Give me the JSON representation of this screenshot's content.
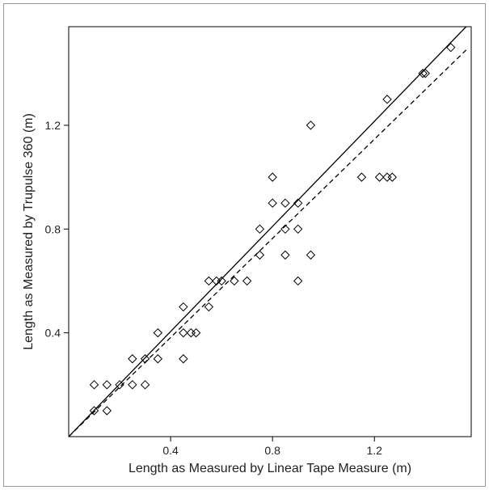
{
  "chart_data": {
    "type": "scatter",
    "title": "",
    "xlabel": "Length as Measured by Linear Tape Measure (m)",
    "ylabel": "Length as Measured by Trupulse 360 (m)",
    "xlim": [
      0.0,
      1.58
    ],
    "ylim": [
      0.0,
      1.58
    ],
    "xticks": [
      0.4,
      0.8,
      1.2
    ],
    "yticks": [
      0.4,
      0.8,
      1.2
    ],
    "xtick_labels": [
      "0.4",
      "0.8",
      "1.2"
    ],
    "ytick_labels": [
      "0.4",
      "0.8",
      "1.2"
    ],
    "grid": false,
    "legend": "none",
    "marker": "open-diamond",
    "series": [
      {
        "points": [
          [
            0.1,
            0.1
          ],
          [
            0.15,
            0.1
          ],
          [
            0.1,
            0.2
          ],
          [
            0.15,
            0.2
          ],
          [
            0.2,
            0.2
          ],
          [
            0.25,
            0.2
          ],
          [
            0.3,
            0.2
          ],
          [
            0.25,
            0.3
          ],
          [
            0.3,
            0.3
          ],
          [
            0.35,
            0.3
          ],
          [
            0.45,
            0.3
          ],
          [
            0.35,
            0.4
          ],
          [
            0.45,
            0.4
          ],
          [
            0.48,
            0.4
          ],
          [
            0.5,
            0.4
          ],
          [
            0.45,
            0.5
          ],
          [
            0.55,
            0.5
          ],
          [
            0.55,
            0.6
          ],
          [
            0.58,
            0.6
          ],
          [
            0.6,
            0.6
          ],
          [
            0.65,
            0.6
          ],
          [
            0.7,
            0.6
          ],
          [
            0.9,
            0.6
          ],
          [
            0.75,
            0.7
          ],
          [
            0.85,
            0.7
          ],
          [
            0.95,
            0.7
          ],
          [
            0.75,
            0.8
          ],
          [
            0.85,
            0.8
          ],
          [
            0.9,
            0.8
          ],
          [
            0.8,
            0.9
          ],
          [
            0.85,
            0.9
          ],
          [
            0.9,
            0.9
          ],
          [
            0.8,
            1.0
          ],
          [
            1.15,
            1.0
          ],
          [
            1.22,
            1.0
          ],
          [
            1.25,
            1.0
          ],
          [
            1.27,
            1.0
          ],
          [
            0.95,
            1.2
          ],
          [
            1.25,
            1.3
          ],
          [
            1.39,
            1.4
          ],
          [
            1.4,
            1.4
          ],
          [
            1.5,
            1.5
          ]
        ]
      }
    ],
    "lines": [
      {
        "style": "solid",
        "x": [
          0.0,
          1.56
        ],
        "y": [
          0.0,
          1.58
        ]
      },
      {
        "style": "dashed",
        "x": [
          0.0,
          1.56
        ],
        "y": [
          0.0,
          1.49
        ]
      }
    ]
  }
}
